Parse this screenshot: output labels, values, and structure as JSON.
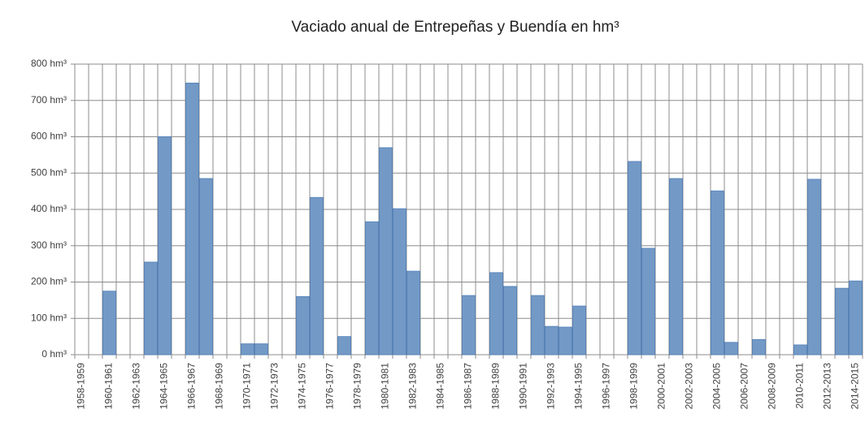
{
  "chart_data": {
    "type": "bar",
    "title": "Vaciado anual de Entrepeñas y Buendía en hm³",
    "categories": [
      "1958-1959",
      null,
      "1960-1961",
      null,
      "1962-1963",
      null,
      "1964-1965",
      null,
      "1966-1967",
      null,
      "1968-1969",
      null,
      "1970-1971",
      null,
      "1972-1973",
      null,
      "1974-1975",
      null,
      "1976-1977",
      null,
      "1978-1979",
      null,
      "1980-1981",
      null,
      "1982-1983",
      null,
      "1984-1985",
      null,
      "1986-1987",
      null,
      "1988-1989",
      null,
      "1990-1991",
      null,
      "1992-1993",
      null,
      "1994-1995",
      null,
      "1996-1997",
      null,
      "1998-1999",
      null,
      "2000-2001",
      null,
      "2002-2003",
      null,
      "2004-2005",
      null,
      "2006-2007",
      null,
      "2008-2009",
      null,
      "2010-2011",
      null,
      "2012-2013",
      null,
      "2014-2015"
    ],
    "values": [
      0,
      0,
      175,
      0,
      0,
      255,
      600,
      0,
      748,
      485,
      0,
      0,
      30,
      30,
      0,
      0,
      160,
      433,
      0,
      50,
      0,
      366,
      570,
      402,
      230,
      0,
      0,
      0,
      163,
      0,
      226,
      188,
      0,
      163,
      78,
      76,
      134,
      0,
      0,
      0,
      532,
      293,
      0,
      485,
      0,
      0,
      451,
      34,
      0,
      42,
      0,
      0,
      27,
      483,
      0,
      183,
      203
    ],
    "color": "#7399c6",
    "ylim": [
      0,
      800
    ],
    "yticks": [
      {
        "value": 0,
        "label": "0 hm³"
      },
      {
        "value": 100,
        "label": "100 hm³"
      },
      {
        "value": 200,
        "label": "200 hm³"
      },
      {
        "value": 300,
        "label": "300 hm³"
      },
      {
        "value": 400,
        "label": "400 hm³"
      },
      {
        "value": 500,
        "label": "500 hm³"
      },
      {
        "value": 600,
        "label": "600 hm³"
      },
      {
        "value": 700,
        "label": "700 hm³"
      },
      {
        "value": 800,
        "label": "800 hm³"
      }
    ],
    "grid": true
  }
}
